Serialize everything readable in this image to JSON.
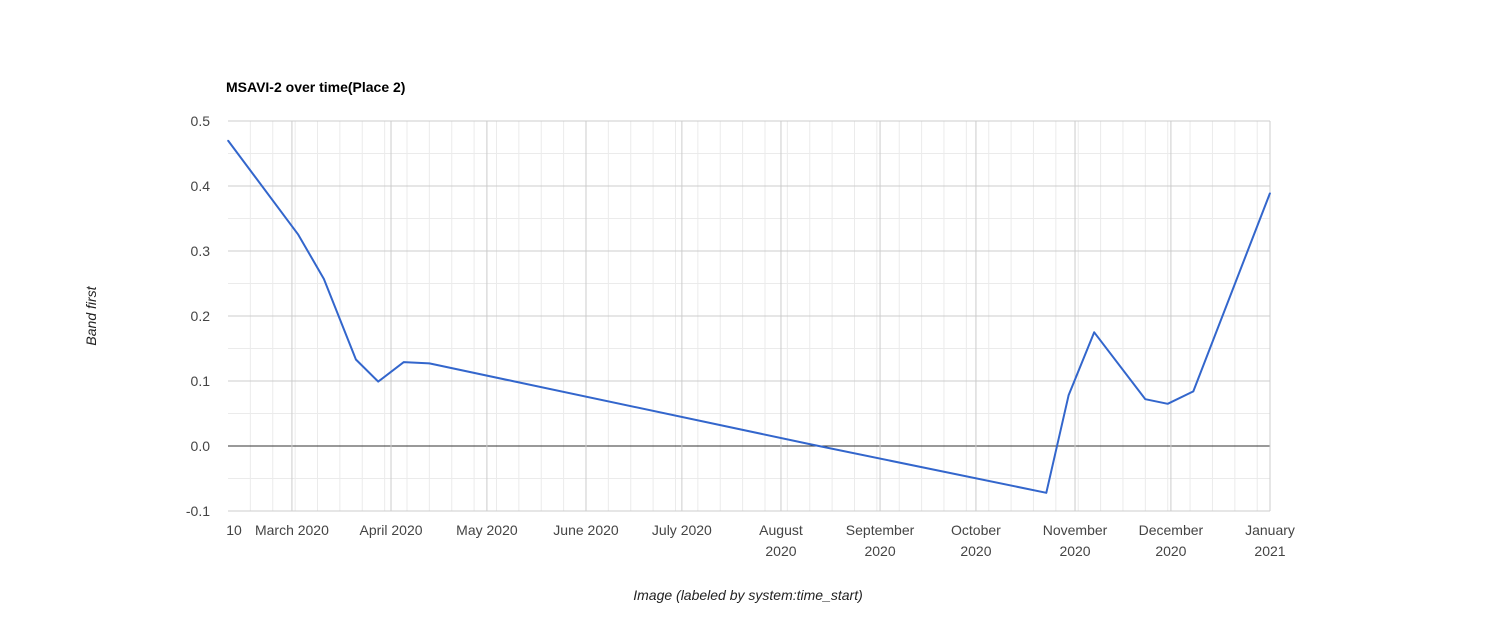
{
  "chart_data": {
    "type": "line",
    "title": "MSAVI-2 over time(Place 2)",
    "xlabel": "Image (labeled by system:time_start)",
    "ylabel": "Band first",
    "ylim": [
      -0.1,
      0.5
    ],
    "xlim": [
      "2020-02-10",
      "2021-01-01"
    ],
    "yticks": [
      "-0.1",
      "0.0",
      "0.1",
      "0.2",
      "0.3",
      "0.4",
      "0.5"
    ],
    "xticks": [
      {
        "date": "2020-02-10",
        "lines": [
          "10"
        ]
      },
      {
        "date": "2020-03-01",
        "lines": [
          "March 2020"
        ]
      },
      {
        "date": "2020-04-01",
        "lines": [
          "April 2020"
        ]
      },
      {
        "date": "2020-05-01",
        "lines": [
          "May 2020"
        ]
      },
      {
        "date": "2020-06-01",
        "lines": [
          "June 2020"
        ]
      },
      {
        "date": "2020-07-01",
        "lines": [
          "July 2020"
        ]
      },
      {
        "date": "2020-08-01",
        "lines": [
          "August",
          "2020"
        ]
      },
      {
        "date": "2020-09-01",
        "lines": [
          "September",
          "2020"
        ]
      },
      {
        "date": "2020-10-01",
        "lines": [
          "October",
          "2020"
        ]
      },
      {
        "date": "2020-11-01",
        "lines": [
          "November",
          "2020"
        ]
      },
      {
        "date": "2020-12-01",
        "lines": [
          "December",
          "2020"
        ]
      },
      {
        "date": "2021-01-01",
        "lines": [
          "January",
          "2021"
        ]
      }
    ],
    "grid": true,
    "legend": "none",
    "series": [
      {
        "color": "#3366cc",
        "x": [
          "2020-02-10",
          "2020-03-03",
          "2020-03-11",
          "2020-03-21",
          "2020-03-28",
          "2020-04-05",
          "2020-04-13",
          "2020-08-10",
          "2020-10-23",
          "2020-10-30",
          "2020-11-07",
          "2020-11-23",
          "2020-11-30",
          "2020-12-08",
          "2021-01-01"
        ],
        "y": [
          0.47,
          0.325,
          0.257,
          0.133,
          0.099,
          0.129,
          0.127,
          0.003,
          -0.072,
          0.078,
          0.175,
          0.072,
          0.065,
          0.084,
          0.389
        ]
      }
    ]
  }
}
